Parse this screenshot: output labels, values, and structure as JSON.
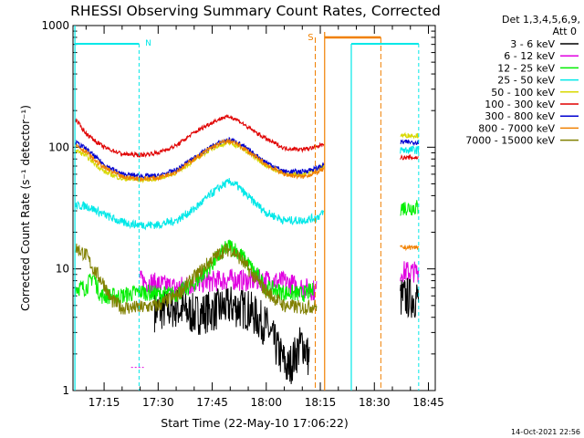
{
  "chart_data": {
    "type": "line",
    "title": "RHESSI Observing Summary Count Rates, Corrected",
    "xlabel": "Start Time (22-May-10 17:06:22)",
    "ylabel": "Corrected Count Rate (s⁻¹ detector⁻¹)",
    "x_range_min": [
      6.37,
      103
    ],
    "x_ticks": [
      {
        "label": "17:15",
        "min": 15
      },
      {
        "label": "17:30",
        "min": 30
      },
      {
        "label": "17:45",
        "min": 45
      },
      {
        "label": "18:00",
        "min": 60
      },
      {
        "label": "18:15",
        "min": 75
      },
      {
        "label": "18:30",
        "min": 90
      },
      {
        "label": "18:45",
        "min": 105
      }
    ],
    "y_scale": "log",
    "ylim": [
      1,
      1000
    ],
    "y_ticks": [
      {
        "label": "1",
        "value": 1
      },
      {
        "label": "10",
        "value": 10
      },
      {
        "label": "100",
        "value": 100
      },
      {
        "label": "1000",
        "value": 1000
      }
    ],
    "legend": {
      "header": [
        "Det 1,3,4,5,6,9,",
        "Att 0"
      ],
      "placement": "right"
    },
    "annotations": {
      "night_label": "N",
      "saa_label": "S"
    },
    "timestamp": "14-Oct-2021 22:56",
    "series": [
      {
        "name": "3 - 6 keV",
        "color": "#000000",
        "points": [
          [
            29,
            4.5
          ],
          [
            35,
            4.8
          ],
          [
            40,
            4.2
          ],
          [
            45,
            4.5
          ],
          [
            50,
            5.0
          ],
          [
            55,
            4.6
          ],
          [
            60,
            3.4
          ],
          [
            63,
            2.2
          ],
          [
            66,
            1.5
          ],
          [
            70,
            2.5
          ],
          [
            72,
            1.8
          ]
        ]
      },
      {
        "name": "6 - 12 keV",
        "color": "#e000e0",
        "points": [
          [
            25,
            8.0
          ],
          [
            30,
            7.5
          ],
          [
            35,
            7.0
          ],
          [
            40,
            7.6
          ],
          [
            45,
            7.9
          ],
          [
            50,
            8.2
          ],
          [
            55,
            8.0
          ],
          [
            60,
            8.1
          ],
          [
            65,
            7.8
          ],
          [
            70,
            7.0
          ],
          [
            74,
            6.6
          ]
        ]
      },
      {
        "name": "12 - 25 keV",
        "color": "#00ee00",
        "points": [
          [
            7,
            7.0
          ],
          [
            10,
            7.0
          ],
          [
            12,
            8.8
          ],
          [
            14,
            6.0
          ],
          [
            20,
            6.0
          ],
          [
            25,
            6.5
          ],
          [
            30,
            6.2
          ],
          [
            35,
            6.2
          ],
          [
            40,
            7.5
          ],
          [
            45,
            11
          ],
          [
            48,
            14
          ],
          [
            50,
            15.5
          ],
          [
            52,
            14
          ],
          [
            55,
            11
          ],
          [
            60,
            7.0
          ],
          [
            65,
            6.4
          ],
          [
            70,
            6.2
          ],
          [
            73,
            6.6
          ]
        ]
      },
      {
        "name": "25 - 50 keV",
        "color": "#00e8e8",
        "points": [
          [
            7,
            33
          ],
          [
            10,
            33
          ],
          [
            12,
            31
          ],
          [
            15,
            28
          ],
          [
            20,
            24
          ],
          [
            25,
            23
          ],
          [
            30,
            23
          ],
          [
            35,
            25
          ],
          [
            40,
            31
          ],
          [
            45,
            42
          ],
          [
            48,
            49
          ],
          [
            50,
            52
          ],
          [
            52,
            48
          ],
          [
            55,
            39
          ],
          [
            60,
            29
          ],
          [
            65,
            25
          ],
          [
            70,
            25
          ],
          [
            74,
            26.5
          ],
          [
            76,
            29
          ]
        ]
      },
      {
        "name": "50 - 100 keV",
        "color": "#d8d800",
        "points": [
          [
            7,
            95
          ],
          [
            10,
            85
          ],
          [
            12,
            75
          ],
          [
            15,
            63
          ],
          [
            20,
            55
          ],
          [
            25,
            54
          ],
          [
            30,
            55
          ],
          [
            35,
            62
          ],
          [
            40,
            78
          ],
          [
            45,
            98
          ],
          [
            48,
            106
          ],
          [
            50,
            108
          ],
          [
            52,
            103
          ],
          [
            55,
            90
          ],
          [
            60,
            71
          ],
          [
            65,
            60
          ],
          [
            70,
            60
          ],
          [
            74,
            65
          ],
          [
            76,
            70
          ]
        ]
      },
      {
        "name": "100 - 300 keV",
        "color": "#e00000",
        "points": [
          [
            7,
            170
          ],
          [
            10,
            130
          ],
          [
            13,
            110
          ],
          [
            15,
            100
          ],
          [
            20,
            88
          ],
          [
            25,
            86
          ],
          [
            30,
            90
          ],
          [
            35,
            103
          ],
          [
            40,
            132
          ],
          [
            45,
            160
          ],
          [
            48,
            175
          ],
          [
            50,
            178
          ],
          [
            52,
            168
          ],
          [
            55,
            145
          ],
          [
            60,
            117
          ],
          [
            65,
            98
          ],
          [
            70,
            96
          ],
          [
            74,
            100
          ],
          [
            76,
            108
          ]
        ]
      },
      {
        "name": "300 - 800 keV",
        "color": "#0000d0",
        "points": [
          [
            7,
            110
          ],
          [
            10,
            97
          ],
          [
            12,
            86
          ],
          [
            15,
            72
          ],
          [
            20,
            60
          ],
          [
            25,
            58
          ],
          [
            30,
            58
          ],
          [
            35,
            65
          ],
          [
            40,
            82
          ],
          [
            45,
            102
          ],
          [
            48,
            112
          ],
          [
            50,
            115
          ],
          [
            52,
            110
          ],
          [
            55,
            95
          ],
          [
            60,
            75
          ],
          [
            65,
            63
          ],
          [
            70,
            63
          ],
          [
            74,
            67
          ],
          [
            76,
            72
          ]
        ]
      },
      {
        "name": "800 - 7000 keV",
        "color": "#f08000",
        "points": [
          [
            7,
            105
          ],
          [
            10,
            92
          ],
          [
            12,
            80
          ],
          [
            15,
            68
          ],
          [
            20,
            57
          ],
          [
            25,
            55
          ],
          [
            30,
            56
          ],
          [
            35,
            63
          ],
          [
            40,
            80
          ],
          [
            45,
            100
          ],
          [
            48,
            110
          ],
          [
            50,
            112
          ],
          [
            52,
            106
          ],
          [
            55,
            92
          ],
          [
            60,
            72
          ],
          [
            65,
            60
          ],
          [
            70,
            57
          ],
          [
            74,
            62
          ],
          [
            76,
            66
          ]
        ]
      },
      {
        "name": "7000 - 15000 keV",
        "color": "#808000",
        "points": [
          [
            7,
            15
          ],
          [
            10,
            13
          ],
          [
            12,
            10
          ],
          [
            15,
            7.5
          ],
          [
            17,
            5.5
          ],
          [
            20,
            4.8
          ],
          [
            25,
            4.8
          ],
          [
            30,
            5.0
          ],
          [
            35,
            6.0
          ],
          [
            40,
            8.5
          ],
          [
            45,
            12
          ],
          [
            48,
            14
          ],
          [
            50,
            14.5
          ],
          [
            52,
            13
          ],
          [
            55,
            10
          ],
          [
            60,
            6.5
          ],
          [
            65,
            5.0
          ],
          [
            70,
            4.8
          ],
          [
            74,
            5.0
          ]
        ]
      }
    ],
    "segment_end_min": 76.5,
    "segment2_start_min": 97.2,
    "segment2_end_min": 102.3,
    "segment2_values": [
      5.8,
      9.5,
      32,
      95,
      125,
      82,
      110,
      15
    ]
  }
}
